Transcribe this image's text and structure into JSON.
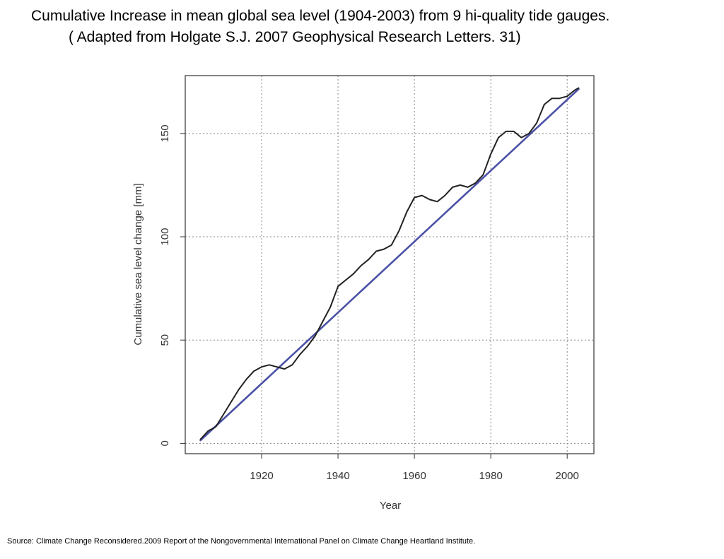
{
  "slide": {
    "title_line1": "Cumulative Increase in mean global sea level (1904-2003) from 9 hi-quality tide gauges.",
    "title_line2": "( Adapted from Holgate S.J. 2007 Geophysical Research Letters. 31)",
    "source": "Source: Climate Change Reconsidered.2009  Report of the Nongovernmental International Panel on Climate Change Heartland Institute."
  },
  "chart_data": {
    "type": "line",
    "title": "",
    "xlabel": "Year",
    "ylabel": "Cumulative sea level change [mm]",
    "xlim": [
      1900,
      2007
    ],
    "ylim": [
      -5,
      178
    ],
    "x_ticks": [
      1920,
      1940,
      1960,
      1980,
      2000
    ],
    "y_ticks": [
      0,
      50,
      100,
      150
    ],
    "grid": true,
    "grid_style": "dotted",
    "legend": "none",
    "series": [
      {
        "color": "#222222",
        "style": "solid",
        "x": [
          1904,
          1906,
          1908,
          1910,
          1912,
          1914,
          1916,
          1918,
          1920,
          1922,
          1924,
          1926,
          1928,
          1930,
          1932,
          1934,
          1936,
          1938,
          1940,
          1942,
          1944,
          1946,
          1948,
          1950,
          1952,
          1954,
          1956,
          1958,
          1960,
          1962,
          1964,
          1966,
          1968,
          1970,
          1972,
          1974,
          1976,
          1978,
          1980,
          1982,
          1984,
          1986,
          1988,
          1990,
          1992,
          1994,
          1996,
          1998,
          2000,
          2002,
          2003
        ],
        "y": [
          2,
          6,
          8,
          14,
          20,
          26,
          31,
          35,
          37,
          38,
          37,
          36,
          38,
          43,
          47,
          52,
          59,
          66,
          76,
          79,
          82,
          86,
          89,
          93,
          94,
          96,
          103,
          112,
          119,
          120,
          118,
          117,
          120,
          124,
          125,
          124,
          126,
          130,
          140,
          148,
          151,
          151,
          148,
          150,
          155,
          164,
          167,
          167,
          168,
          171,
          172
        ]
      },
      {
        "color": "#4a52a6",
        "style": "solid",
        "x": [
          1904,
          2003
        ],
        "y": [
          1.5,
          171.5
        ]
      }
    ]
  }
}
